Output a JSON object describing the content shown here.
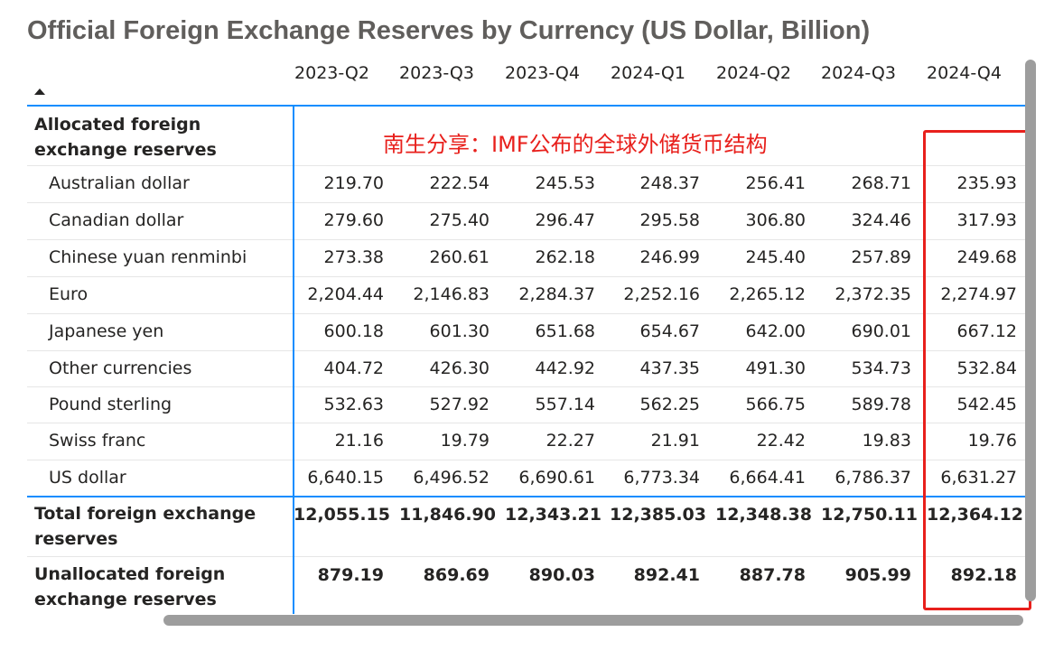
{
  "title": "Official Foreign Exchange Reserves by Currency (US Dollar, Billion)",
  "annotation": "南生分享：IMF公布的全球外储货币结构",
  "chart_data": {
    "type": "table",
    "title": "Official Foreign Exchange Reserves by Currency (US Dollar, Billion)",
    "columns": [
      "2023-Q2",
      "2023-Q3",
      "2023-Q4",
      "2024-Q1",
      "2024-Q2",
      "2024-Q3",
      "2024-Q4"
    ],
    "sections": [
      {
        "label": "Allocated foreign exchange reserves",
        "bold": true,
        "values": []
      },
      {
        "label": "Australian dollar",
        "values": [
          "219.70",
          "222.54",
          "245.53",
          "248.37",
          "256.41",
          "268.71",
          "235.93"
        ]
      },
      {
        "label": "Canadian dollar",
        "values": [
          "279.60",
          "275.40",
          "296.47",
          "295.58",
          "306.80",
          "324.46",
          "317.93"
        ]
      },
      {
        "label": "Chinese yuan renminbi",
        "values": [
          "273.38",
          "260.61",
          "262.18",
          "246.99",
          "245.40",
          "257.89",
          "249.68"
        ]
      },
      {
        "label": "Euro",
        "values": [
          "2,204.44",
          "2,146.83",
          "2,284.37",
          "2,252.16",
          "2,265.12",
          "2,372.35",
          "2,274.97"
        ]
      },
      {
        "label": "Japanese yen",
        "values": [
          "600.18",
          "601.30",
          "651.68",
          "654.67",
          "642.00",
          "690.01",
          "667.12"
        ]
      },
      {
        "label": "Other currencies",
        "values": [
          "404.72",
          "426.30",
          "442.92",
          "437.35",
          "491.30",
          "534.73",
          "532.84"
        ]
      },
      {
        "label": "Pound sterling",
        "values": [
          "532.63",
          "527.92",
          "557.14",
          "562.25",
          "566.75",
          "589.78",
          "542.45"
        ]
      },
      {
        "label": "Swiss franc",
        "values": [
          "21.16",
          "19.79",
          "22.27",
          "21.91",
          "22.42",
          "19.83",
          "19.76"
        ]
      },
      {
        "label": "US dollar",
        "values": [
          "6,640.15",
          "6,496.52",
          "6,690.61",
          "6,773.34",
          "6,664.41",
          "6,786.37",
          "6,631.27"
        ]
      },
      {
        "label": "Total foreign exchange reserves",
        "bold": true,
        "values": [
          "12,055.15",
          "11,846.90",
          "12,343.21",
          "12,385.03",
          "12,348.38",
          "12,750.11",
          "12,364.12"
        ]
      },
      {
        "label": "Unallocated foreign exchange reserves",
        "bold": true,
        "values": [
          "879.19",
          "869.69",
          "890.03",
          "892.41",
          "887.78",
          "905.99",
          "892.18"
        ]
      }
    ],
    "highlighted_column": "2024-Q4",
    "colors": {
      "highlight": "#e8201c",
      "divider": "#118dff",
      "scrollbar": "#9d9d9d"
    }
  }
}
